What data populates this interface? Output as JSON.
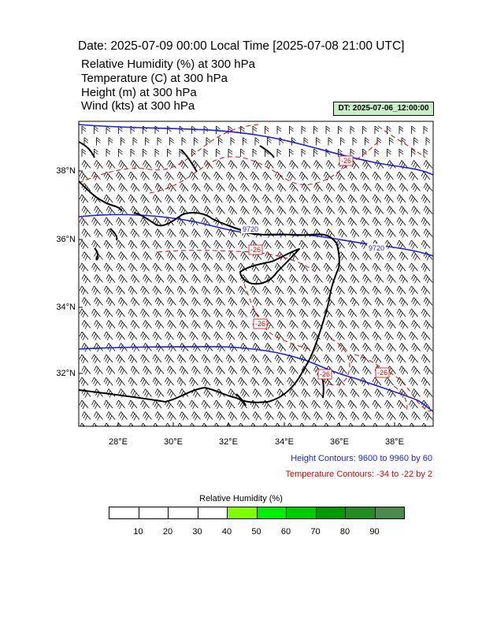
{
  "header": {
    "date_line": "Date: 2025-07-09  00:00 Local Time [2025-07-08  21:00 UTC]",
    "params": [
      "Relative Humidity   (%)      at   300 hPa",
      "Temperature   (C)     at   300 hPa",
      "Height   (m)     at   300 hPa",
      "Wind   (kts)     at   300 hPa"
    ],
    "dt_label": "DT: 2025-07-06_12:00:00"
  },
  "map": {
    "lat_labels": [
      "38°N",
      "36°N",
      "34°N",
      "32°N"
    ],
    "lon_labels": [
      "28°E",
      "30°E",
      "32°E",
      "34°E",
      "36°E",
      "38°E"
    ],
    "height_contour_labels": [
      "9720",
      "9720",
      "9780"
    ],
    "temp_contour_labels": [
      "-26",
      "-26",
      "-26",
      "-26",
      "-26"
    ],
    "colors": {
      "height": "#1a1aff",
      "temperature": "#e00000",
      "coast": "#000000"
    }
  },
  "legend": {
    "height_contours": "Height Contours: 9600 to 9960 by 60",
    "temperature_contours": "Temperature Contours: -34 to -22 by 2"
  },
  "colorbar": {
    "title": "Relative Humidity  (%)",
    "labels": [
      "10",
      "20",
      "30",
      "40",
      "50",
      "60",
      "70",
      "80",
      "90"
    ],
    "colors": [
      "#ffffff",
      "#ffffff",
      "#ffffff",
      "#ffffff",
      "#80ff00",
      "#00ee00",
      "#00cc00",
      "#009900",
      "#228b22",
      "#4a8a4a"
    ]
  }
}
